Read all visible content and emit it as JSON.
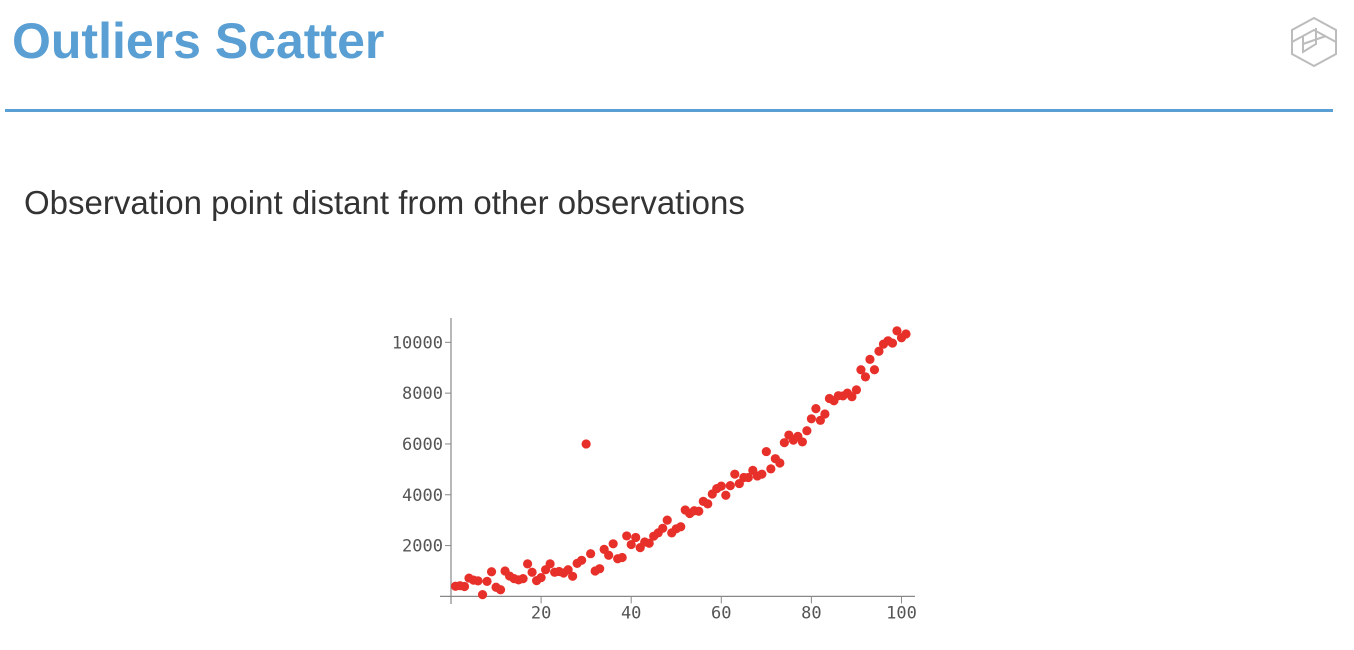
{
  "slide": {
    "title": "Outliers Scatter",
    "subtitle": "Observation point distant from other observations"
  },
  "logo": {
    "icon": "hexagon-logo-icon"
  },
  "colors": {
    "accent": "#5a9fd4",
    "point": "#e8302a",
    "text": "#333333"
  },
  "chart_data": {
    "type": "scatter",
    "title": "",
    "xlabel": "",
    "ylabel": "",
    "xlim": [
      0,
      103
    ],
    "ylim": [
      -300,
      10800
    ],
    "x_ticks": [
      20,
      40,
      60,
      80,
      100
    ],
    "y_ticks": [
      2000,
      4000,
      6000,
      8000,
      10000
    ],
    "grid": false,
    "legend": "none",
    "series": [
      {
        "x": [
          1,
          2,
          3,
          4,
          5,
          6,
          7,
          8,
          9,
          10,
          11,
          12,
          13,
          14,
          15,
          16,
          17,
          18,
          19,
          20,
          21,
          22,
          23,
          24,
          25,
          26,
          27,
          28,
          29,
          30,
          31,
          32,
          33,
          34,
          35,
          36,
          37,
          38,
          39,
          40,
          41,
          42,
          43,
          44,
          45,
          46,
          47,
          48,
          49,
          50,
          51,
          52,
          53,
          54,
          55,
          56,
          57,
          58,
          59,
          60,
          61,
          62,
          63,
          64,
          65,
          66,
          67,
          68,
          69,
          70,
          71,
          72,
          73,
          74,
          75,
          76,
          77,
          78,
          79,
          80,
          81,
          82,
          83,
          84,
          85,
          86,
          87,
          88,
          89,
          90,
          91,
          92,
          93,
          94,
          95,
          96,
          97,
          98,
          99,
          100,
          101
        ],
        "y": [
          400,
          420,
          390,
          720,
          640,
          610,
          70,
          590,
          970,
          360,
          260,
          1000,
          800,
          700,
          650,
          700,
          1280,
          950,
          620,
          740,
          1050,
          1280,
          950,
          980,
          920,
          1050,
          790,
          1300,
          1420,
          6000,
          1680,
          1000,
          1090,
          1850,
          1620,
          2070,
          1480,
          1530,
          2380,
          2040,
          2320,
          1920,
          2140,
          2090,
          2370,
          2500,
          2680,
          3000,
          2500,
          2660,
          2740,
          3400,
          3260,
          3370,
          3350,
          3740,
          3640,
          4030,
          4240,
          4340,
          3980,
          4360,
          4810,
          4440,
          4680,
          4680,
          4960,
          4740,
          4810,
          5700,
          5020,
          5420,
          5250,
          6050,
          6350,
          6150,
          6300,
          6080,
          6520,
          6990,
          7390,
          6930,
          7180,
          7790,
          7700,
          7900,
          7890,
          8000,
          7860,
          8130,
          8920,
          8640,
          9330,
          8920,
          9650,
          9930,
          10060,
          9970,
          10450,
          10180,
          10330
        ]
      }
    ]
  }
}
